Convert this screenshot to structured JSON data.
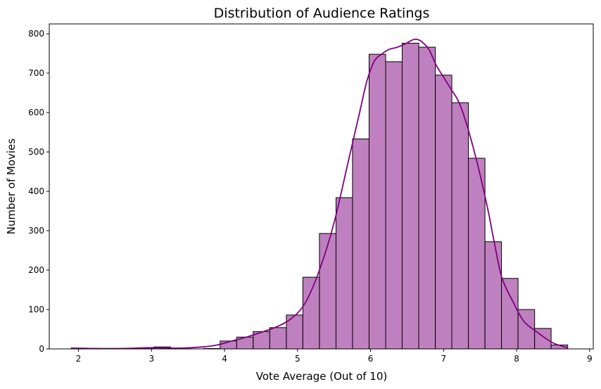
{
  "chart_data": {
    "type": "bar",
    "subtype": "histogram",
    "title": "Distribution of Audience Ratings",
    "xlabel": "Vote Average (Out of 10)",
    "ylabel": "Number of Movies",
    "xlim": [
      1.6,
      9.05
    ],
    "ylim": [
      0,
      825
    ],
    "xticks": [
      2,
      3,
      4,
      5,
      6,
      7,
      8,
      9
    ],
    "yticks": [
      0,
      100,
      200,
      300,
      400,
      500,
      600,
      700,
      800
    ],
    "bin_edges": [
      1.9,
      2.127,
      2.353,
      2.58,
      2.807,
      3.033,
      3.26,
      3.487,
      3.713,
      3.94,
      4.167,
      4.393,
      4.62,
      4.847,
      5.073,
      5.3,
      5.527,
      5.753,
      5.98,
      6.207,
      6.433,
      6.66,
      6.887,
      7.113,
      7.34,
      7.567,
      7.793,
      8.02,
      8.247,
      8.473,
      8.7
    ],
    "counts": [
      2,
      0,
      0,
      1,
      2,
      5,
      1,
      0,
      1,
      20,
      30,
      44,
      54,
      86,
      182,
      293,
      384,
      533,
      748,
      729,
      776,
      766,
      695,
      625,
      484,
      272,
      179,
      100,
      52,
      10
    ],
    "kde": {
      "x": [
        1.9,
        2.2,
        2.6,
        3.0,
        3.4,
        3.7,
        3.9,
        4.1,
        4.3,
        4.5,
        4.7,
        4.9,
        5.1,
        5.3,
        5.5,
        5.7,
        5.85,
        5.95,
        6.05,
        6.15,
        6.25,
        6.35,
        6.45,
        6.55,
        6.6,
        6.65,
        6.7,
        6.8,
        6.9,
        7.0,
        7.1,
        7.2,
        7.3,
        7.45,
        7.6,
        7.7,
        7.8,
        7.95,
        8.1,
        8.3,
        8.5,
        8.7
      ],
      "y": [
        2,
        1,
        1,
        3,
        2,
        5,
        10,
        20,
        30,
        42,
        55,
        75,
        115,
        200,
        320,
        480,
        600,
        680,
        730,
        748,
        760,
        765,
        772,
        782,
        786,
        785,
        780,
        760,
        720,
        690,
        660,
        630,
        580,
        480,
        360,
        265,
        180,
        120,
        70,
        40,
        15,
        3
      ]
    },
    "bar_color": "#bf80bf",
    "bar_edge_color": "#000000",
    "kde_color": "#800080",
    "grid": false,
    "legend": "none"
  }
}
